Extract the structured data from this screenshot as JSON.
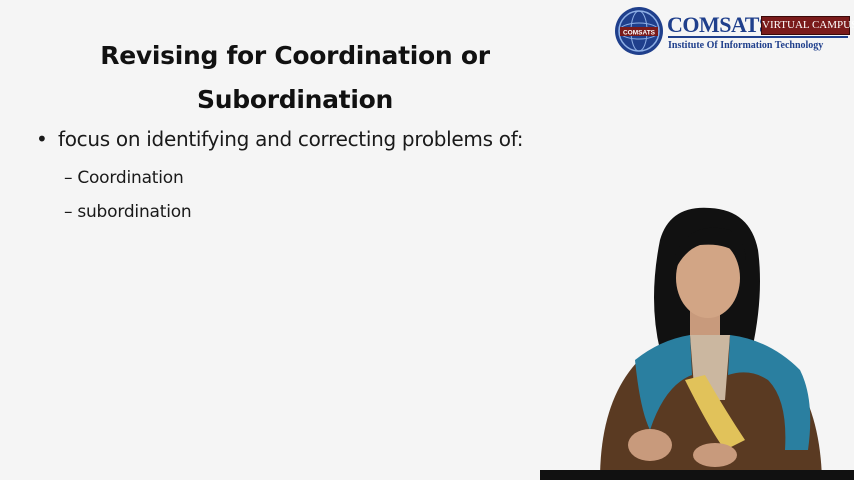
{
  "slide": {
    "title_line1": "Revising for Coordination or",
    "title_line2": "Subordination",
    "bullet_symbol": "•",
    "bullet_text": "focus on identifying and correcting problems of:",
    "sub_dash": "–",
    "sub_items": [
      "Coordination",
      "subordination"
    ]
  },
  "logo": {
    "seal_text": "COMSATS",
    "name": "COMSATS",
    "badge": "VIRTUAL CAMPUS",
    "subtitle": "Institute Of Information Technology",
    "colors": {
      "primary": "#1f3f8c",
      "badge": "#7a1b1b"
    }
  },
  "presenter": {
    "icon": "presenter-video-figure",
    "colors": {
      "scarf": "#2a7fa0",
      "top": "#5a3a22",
      "hair": "#111111"
    }
  }
}
